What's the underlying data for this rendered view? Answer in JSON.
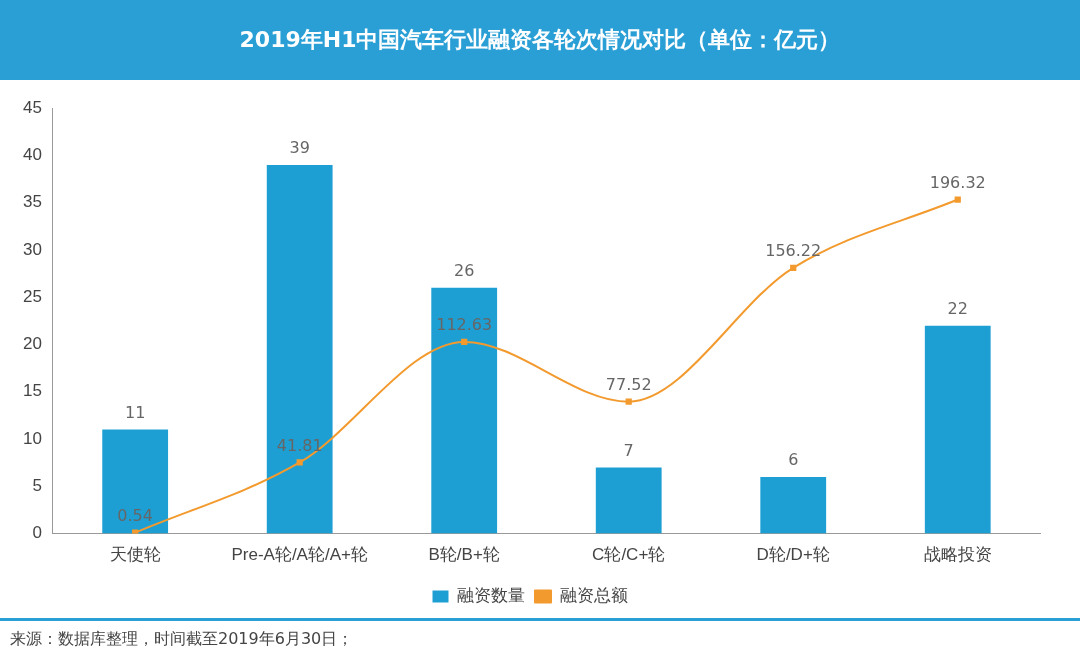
{
  "chart_data": {
    "type": "bar",
    "title": "2019年H1中国汽车行业融资各轮次情况对比（单位：亿元）",
    "categories": [
      "天使轮",
      "Pre-A轮/A轮/A+轮",
      "B轮/B+轮",
      "C轮/C+轮",
      "D轮/D+轮",
      "战略投资"
    ],
    "series": [
      {
        "name": "融资数量",
        "color": "#1e9fd4",
        "values": [
          11,
          39,
          26,
          7,
          6,
          22
        ]
      },
      {
        "name": "融资总额",
        "type": "line",
        "axis": "y2",
        "color": "#f39a2e",
        "values": [
          0.54,
          41.81,
          112.63,
          77.52,
          156.22,
          196.32
        ]
      }
    ],
    "ylim": [
      0,
      45
    ],
    "yticks": [
      0,
      5,
      10,
      15,
      20,
      25,
      30,
      35,
      40,
      45
    ],
    "y2lim": [
      0,
      250
    ],
    "data_labels": true,
    "legend": "bottom",
    "grid": false,
    "marker": "square",
    "annotations": [
      "来源：数据库整理，时间截至2019年6月30日；"
    ]
  }
}
